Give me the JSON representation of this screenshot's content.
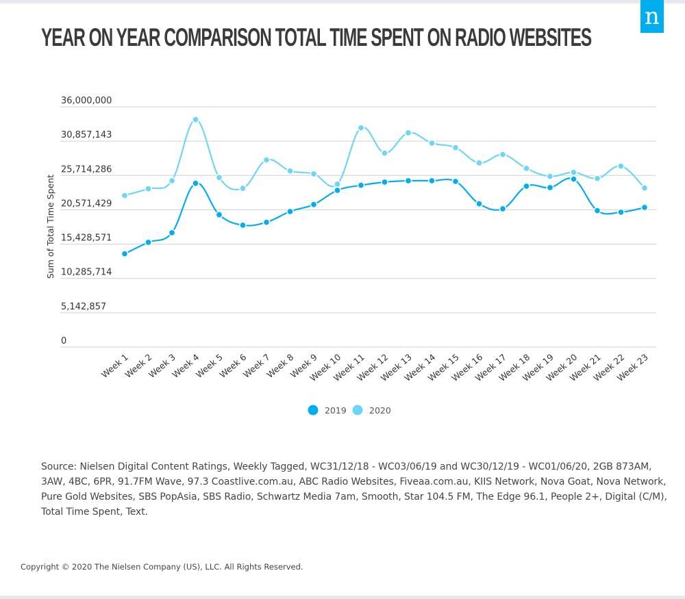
{
  "header": {
    "title": "YEAR ON YEAR  COMPARISON TOTAL TIME SPENT ON RADIO WEBSITES",
    "logo_glyph": "n",
    "logo_color": "#00aeef"
  },
  "chart_data": {
    "type": "line",
    "title": "YEAR ON YEAR  COMPARISON TOTAL TIME SPENT ON RADIO WEBSITES",
    "xlabel": "",
    "ylabel": "Sum of Total Time Spent",
    "ylim": [
      0,
      36000000
    ],
    "yticks": [
      0,
      5142857,
      10285714,
      15428571,
      20571429,
      25714286,
      30857143,
      36000000
    ],
    "ytick_labels": [
      "0",
      "5,142,857",
      "10,285,714",
      "15,428,571",
      "20,571,429",
      "25,714,286",
      "30,857,143",
      "36,000,000"
    ],
    "grid": true,
    "legend_position": "bottom",
    "categories": [
      "Week 1",
      "Week 2",
      "Week 3",
      "Week 4",
      "Week 5",
      "Week 6",
      "Week 7",
      "Week 8",
      "Week 9",
      "Week 10",
      "Week 11",
      "Week 12",
      "Week 13",
      "Week 14",
      "Week 15",
      "Week 16",
      "Week 17",
      "Week 18",
      "Week 19",
      "Week 20",
      "Week 21",
      "Week 22",
      "Week 23"
    ],
    "series": [
      {
        "name": "2019",
        "color": "#00aeef",
        "values": [
          13980000,
          15690000,
          17130000,
          24540000,
          19830000,
          18260000,
          18700000,
          20310000,
          21360000,
          23490000,
          24240000,
          24720000,
          24920000,
          24920000,
          24820000,
          21470000,
          20720000,
          24100000,
          23900000,
          25160000,
          20440000,
          20210000,
          20920000
        ]
      },
      {
        "name": "2020",
        "color": "#6dd5f7",
        "values": [
          22700000,
          23720000,
          24920000,
          34080000,
          25410000,
          23790000,
          28030000,
          26390000,
          25950000,
          24410000,
          32850000,
          29060000,
          32100000,
          30560000,
          29880000,
          27590000,
          28850000,
          26770000,
          25570000,
          26180000,
          25260000,
          27110000,
          23830000
        ]
      }
    ]
  },
  "footer": {
    "source": "Source:  Nielsen Digital Content Ratings, Weekly Tagged, WC31/12/18 - WC03/06/19 and WC30/12/19 - WC01/06/20, 2GB 873AM, 3AW, 4BC, 6PR, 91.7FM Wave, 97.3 Coastlive.com.au, ABC Radio Websites, Fiveaa.com.au, KIIS Network, Nova Goat, Nova Network, Pure Gold Websites, SBS PopAsia, SBS Radio, Schwartz Media 7am, Smooth, Star 104.5 FM, The Edge 96.1, People 2+, Digital (C/M), Total Time Spent, Text.",
    "copyright": "Copyright © 2020 The Nielsen Company (US), LLC. All Rights Reserved."
  }
}
